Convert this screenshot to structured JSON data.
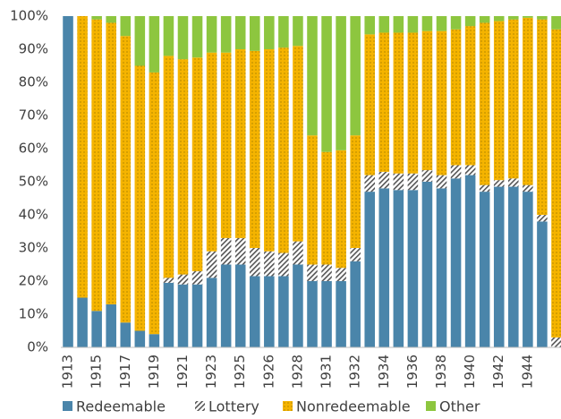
{
  "chart_data": {
    "type": "stacked_bar",
    "categories": [
      "1913",
      null,
      "1915",
      null,
      "1917",
      null,
      "1919",
      null,
      "1921",
      null,
      "1923",
      null,
      "1925",
      null,
      "1926",
      null,
      "1928",
      null,
      "1931",
      null,
      "1932",
      null,
      "1934",
      null,
      "1936",
      null,
      "1938",
      null,
      "1940",
      null,
      "1942",
      null,
      "1944",
      null,
      null
    ],
    "series": [
      {
        "name": "Redeemable",
        "color": "#4a85aa",
        "pattern": "solid",
        "values": [
          100,
          15,
          11,
          13,
          7.5,
          5,
          4,
          19.5,
          19,
          19,
          21,
          25,
          25,
          21.5,
          21.5,
          21.5,
          25,
          20,
          20,
          20,
          26,
          47,
          48,
          47.5,
          47.5,
          50,
          48,
          51,
          52,
          47,
          48.5,
          48.5,
          47,
          38,
          0
        ]
      },
      {
        "name": "Lottery",
        "color": "#555555",
        "pattern": "hatch",
        "values": [
          0,
          0,
          0,
          0,
          0,
          0,
          0,
          1.5,
          3,
          4,
          8,
          8,
          8,
          8.5,
          7.5,
          7,
          7,
          5,
          5,
          4,
          4,
          5,
          5,
          5,
          5,
          3.5,
          4,
          4,
          3,
          2,
          2,
          2.5,
          2,
          2,
          3
        ]
      },
      {
        "name": "Nonredeemable",
        "color": "#f5b400",
        "pattern": "dots",
        "values": [
          0,
          85,
          88,
          85,
          86.5,
          80,
          79,
          67,
          65,
          64.5,
          60,
          56,
          57,
          59.5,
          61,
          62,
          59,
          39,
          34,
          35.5,
          34,
          42.5,
          42,
          42.5,
          42.5,
          42,
          43.5,
          41,
          42,
          49,
          48,
          48,
          50.5,
          59,
          93
        ]
      },
      {
        "name": "Other",
        "color": "#8dc63f",
        "pattern": "solid",
        "values": [
          0,
          0,
          1,
          2,
          6,
          15,
          17,
          12,
          13,
          12.5,
          11,
          11,
          10,
          10.5,
          10,
          9.5,
          9,
          36,
          41,
          40.5,
          36,
          5.5,
          5,
          5,
          5,
          4.5,
          4.5,
          4,
          3,
          2,
          1.5,
          1,
          0.5,
          1,
          4
        ]
      }
    ],
    "ylim": [
      0,
      100
    ],
    "yticks": [
      {
        "value": 0,
        "label": "0%"
      },
      {
        "value": 10,
        "label": "10%"
      },
      {
        "value": 20,
        "label": "20%"
      },
      {
        "value": 30,
        "label": "30%"
      },
      {
        "value": 40,
        "label": "40%"
      },
      {
        "value": 50,
        "label": "50%"
      },
      {
        "value": 60,
        "label": "60%"
      },
      {
        "value": 70,
        "label": "70%"
      },
      {
        "value": 80,
        "label": "80%"
      },
      {
        "value": 90,
        "label": "90%"
      },
      {
        "value": 100,
        "label": "100%"
      }
    ],
    "grid": false,
    "legend": "bottom"
  }
}
